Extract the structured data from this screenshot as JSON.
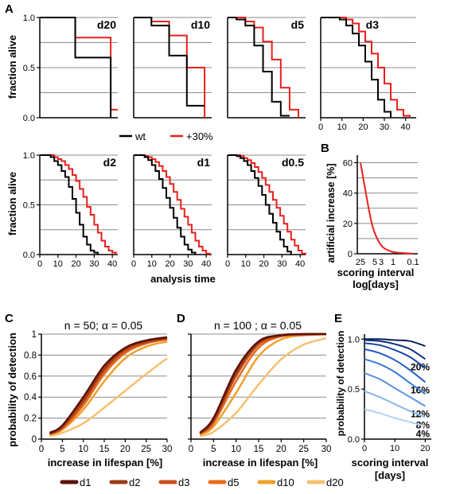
{
  "figure": {
    "colors": {
      "wt": "#000000",
      "plus30": "#e8201c",
      "axis": "#000000",
      "grid": "#8c8c8c",
      "artificial": "#e8201c",
      "d1": "#5a1208",
      "d2": "#9b3a14",
      "d3": "#c8501c",
      "d5": "#e86a1e",
      "d10": "#f0a02a",
      "d20": "#f7c070",
      "E_shades": [
        "#0b1f5c",
        "#0f2f80",
        "#1745a8",
        "#1f5cc8",
        "#3a78d8",
        "#5a94e2",
        "#88b4ec",
        "#b6d0f4"
      ]
    },
    "labels": {
      "panel_A": "A",
      "panel_B": "B",
      "panel_C": "C",
      "panel_D": "D",
      "panel_E": "E",
      "fraction_alive_top": "fraction alive",
      "fraction_alive_bottom": "fraction alive",
      "analysis_time": "analysis time",
      "artificial_increase": "artificial increase [%]",
      "scoring_interval_log_1": "scoring interval",
      "scoring_interval_log_2": "log[days]",
      "prob_detection_C": "probability of detection",
      "prob_detection_D": "probability of detection",
      "prob_detection_E": "probability of detection",
      "increase_lifespan_C": "increase in lifespan [%]",
      "increase_lifespan_D": "increase in lifespan [%]",
      "scoring_interval_E_1": "scoring interval",
      "scoring_interval_E_2": "[days]",
      "title_C": "n = 50; α = 0.05",
      "title_D": "n = 100 ; α = 0.05",
      "legend_wt": "wt",
      "legend_plus30": "+30%"
    },
    "legend_bottom": [
      "d1",
      "d2",
      "d3",
      "d5",
      "d10",
      "d20"
    ]
  },
  "chart_data": [
    {
      "panel": "A",
      "subpanel": "d20",
      "type": "line",
      "step": true,
      "ylabel": "fraction alive",
      "ylim": [
        0,
        1
      ],
      "yticks": [
        "0.0",
        "0.5",
        "1.0"
      ],
      "series": [
        {
          "name": "wt",
          "x": [
            0,
            20,
            20,
            40,
            40
          ],
          "y": [
            1.0,
            1.0,
            0.6,
            0.6,
            0.0
          ]
        },
        {
          "name": "+30%",
          "x": [
            0,
            20,
            20,
            40,
            40,
            44
          ],
          "y": [
            1.0,
            1.0,
            0.8,
            0.8,
            0.08,
            0.08
          ]
        }
      ]
    },
    {
      "panel": "A",
      "subpanel": "d10",
      "type": "line",
      "step": true,
      "ylim": [
        0,
        1
      ],
      "series": [
        {
          "name": "wt",
          "x": [
            0,
            10,
            10,
            20,
            20,
            30,
            30,
            40
          ],
          "y": [
            1.0,
            1.0,
            0.92,
            0.92,
            0.62,
            0.62,
            0.12,
            0.12
          ]
        },
        {
          "name": "+30%",
          "x": [
            0,
            10,
            10,
            20,
            20,
            30,
            30,
            40,
            40
          ],
          "y": [
            1.0,
            1.0,
            0.96,
            0.96,
            0.82,
            0.82,
            0.5,
            0.5,
            0.0
          ]
        }
      ]
    },
    {
      "panel": "A",
      "subpanel": "d5",
      "type": "line",
      "step": true,
      "ylim": [
        0,
        1
      ],
      "series": [
        {
          "name": "wt",
          "x": [
            0,
            5,
            5,
            10,
            10,
            15,
            15,
            20,
            20,
            25,
            25,
            30,
            30,
            35
          ],
          "y": [
            1.0,
            1.0,
            0.98,
            0.98,
            0.92,
            0.92,
            0.72,
            0.72,
            0.46,
            0.46,
            0.16,
            0.16,
            0.02,
            0.02
          ]
        },
        {
          "name": "+30%",
          "x": [
            0,
            5,
            5,
            10,
            10,
            15,
            15,
            20,
            20,
            25,
            25,
            30,
            30,
            35,
            35,
            40,
            40
          ],
          "y": [
            1.0,
            1.0,
            1.0,
            1.0,
            0.96,
            0.96,
            0.9,
            0.9,
            0.76,
            0.76,
            0.58,
            0.58,
            0.3,
            0.3,
            0.08,
            0.08,
            0.0
          ]
        }
      ]
    },
    {
      "panel": "A",
      "subpanel": "d3",
      "type": "line",
      "step": true,
      "ylim": [
        0,
        1
      ],
      "xlim": [
        0,
        45
      ],
      "xticks": [
        0,
        10,
        20,
        30,
        40
      ],
      "series": [
        {
          "name": "wt",
          "x": [
            0,
            9,
            12,
            15,
            18,
            21,
            24,
            27,
            30,
            33
          ],
          "y": [
            1.0,
            0.98,
            0.92,
            0.84,
            0.72,
            0.56,
            0.38,
            0.18,
            0.06,
            0.0
          ]
        },
        {
          "name": "+30%",
          "x": [
            0,
            12,
            15,
            18,
            21,
            24,
            27,
            30,
            33,
            36,
            39,
            42
          ],
          "y": [
            1.0,
            0.98,
            0.94,
            0.86,
            0.76,
            0.64,
            0.5,
            0.34,
            0.18,
            0.08,
            0.02,
            0.0
          ]
        }
      ]
    },
    {
      "panel": "A",
      "subpanel": "d2",
      "type": "line",
      "step": true,
      "ylabel": "fraction alive",
      "ylim": [
        0,
        1
      ],
      "xlim": [
        0,
        42
      ],
      "yticks": [
        "0.0",
        "0.5",
        "1.0"
      ],
      "xticks": [
        0,
        10,
        20,
        30,
        40
      ],
      "series": [
        {
          "name": "wt",
          "x": [
            0,
            6,
            8,
            10,
            12,
            14,
            16,
            18,
            20,
            22,
            24,
            26,
            28,
            30,
            32
          ],
          "y": [
            1.0,
            0.98,
            0.94,
            0.9,
            0.84,
            0.78,
            0.68,
            0.56,
            0.42,
            0.3,
            0.18,
            0.1,
            0.04,
            0.02,
            0.0
          ]
        },
        {
          "name": "+30%",
          "x": [
            0,
            6,
            8,
            10,
            12,
            14,
            16,
            18,
            20,
            22,
            24,
            26,
            28,
            30,
            32,
            34,
            36,
            38,
            40,
            42
          ],
          "y": [
            1.0,
            1.0,
            0.98,
            0.96,
            0.94,
            0.9,
            0.86,
            0.8,
            0.74,
            0.66,
            0.58,
            0.48,
            0.4,
            0.3,
            0.22,
            0.14,
            0.08,
            0.04,
            0.02,
            0.0
          ]
        }
      ]
    },
    {
      "panel": "A",
      "subpanel": "d1",
      "type": "line",
      "step": true,
      "ylim": [
        0,
        1
      ],
      "xlim": [
        0,
        42
      ],
      "xticks": [
        0,
        10,
        20,
        30,
        40
      ],
      "xlabel": "analysis time",
      "series": [
        {
          "name": "wt",
          "x": [
            0,
            6,
            8,
            10,
            12,
            14,
            16,
            18,
            20,
            22,
            24,
            26,
            28,
            30,
            32,
            34
          ],
          "y": [
            1.0,
            0.98,
            0.95,
            0.9,
            0.84,
            0.76,
            0.67,
            0.57,
            0.47,
            0.37,
            0.27,
            0.18,
            0.1,
            0.05,
            0.02,
            0.0
          ]
        },
        {
          "name": "+30%",
          "x": [
            0,
            6,
            8,
            10,
            12,
            14,
            16,
            18,
            20,
            22,
            24,
            26,
            28,
            30,
            32,
            34,
            36,
            38,
            40,
            42
          ],
          "y": [
            1.0,
            0.99,
            0.98,
            0.96,
            0.93,
            0.89,
            0.84,
            0.78,
            0.71,
            0.63,
            0.55,
            0.46,
            0.38,
            0.3,
            0.22,
            0.14,
            0.08,
            0.04,
            0.01,
            0.0
          ]
        }
      ]
    },
    {
      "panel": "A",
      "subpanel": "d0.5",
      "type": "line",
      "step": true,
      "ylim": [
        0,
        1
      ],
      "xlim": [
        0,
        42
      ],
      "xticks": [
        0,
        10,
        20,
        30,
        40
      ],
      "series": [
        {
          "name": "wt",
          "x": [
            0,
            5,
            7,
            9,
            11,
            13,
            15,
            17,
            19,
            21,
            23,
            25,
            27,
            29,
            31,
            33,
            35
          ],
          "y": [
            1.0,
            0.99,
            0.97,
            0.94,
            0.9,
            0.84,
            0.77,
            0.69,
            0.6,
            0.5,
            0.41,
            0.32,
            0.23,
            0.15,
            0.08,
            0.03,
            0.0
          ]
        },
        {
          "name": "+30%",
          "x": [
            0,
            5,
            7,
            9,
            11,
            13,
            15,
            17,
            19,
            21,
            23,
            25,
            27,
            29,
            31,
            33,
            35,
            37,
            39,
            41,
            43
          ],
          "y": [
            1.0,
            1.0,
            0.99,
            0.97,
            0.95,
            0.92,
            0.88,
            0.83,
            0.77,
            0.7,
            0.63,
            0.55,
            0.47,
            0.39,
            0.31,
            0.23,
            0.15,
            0.09,
            0.04,
            0.01,
            0.0
          ]
        }
      ]
    },
    {
      "panel": "B",
      "type": "line",
      "ylabel": "artificial increase [%]",
      "xlabel": "scoring interval log[days]",
      "ylim": [
        0,
        65
      ],
      "yticks": [
        0,
        20,
        40,
        60
      ],
      "xtick_labels": [
        "25",
        "5",
        "3",
        "1",
        "0.1"
      ],
      "series": [
        {
          "name": "",
          "x": [
            25,
            15,
            10,
            7,
            5,
            3,
            2,
            1,
            0.5,
            0.1
          ],
          "y": [
            60,
            42,
            28,
            18,
            12,
            6,
            3.5,
            1.5,
            0.7,
            0.1
          ]
        }
      ]
    },
    {
      "panel": "C",
      "type": "line",
      "title": "n = 50; α = 0.05",
      "xlabel": "increase in lifespan [%]",
      "ylabel": "probability of detection",
      "xlim": [
        0,
        30
      ],
      "ylim": [
        0,
        1
      ],
      "xticks": [
        0,
        5,
        10,
        15,
        20,
        25,
        30
      ],
      "yticks": [
        "0",
        "0.2",
        "0.4",
        "0.6",
        "0.8",
        "1"
      ],
      "x": [
        2,
        5,
        10,
        15,
        20,
        25,
        30
      ],
      "series": [
        {
          "name": "d1",
          "values": [
            0.06,
            0.13,
            0.4,
            0.7,
            0.87,
            0.94,
            0.97
          ]
        },
        {
          "name": "d2",
          "values": [
            0.05,
            0.12,
            0.37,
            0.67,
            0.86,
            0.93,
            0.96
          ]
        },
        {
          "name": "d3",
          "values": [
            0.05,
            0.11,
            0.35,
            0.65,
            0.84,
            0.92,
            0.96
          ]
        },
        {
          "name": "d5",
          "values": [
            0.05,
            0.1,
            0.32,
            0.62,
            0.82,
            0.91,
            0.95
          ]
        },
        {
          "name": "d10",
          "values": [
            0.04,
            0.09,
            0.28,
            0.55,
            0.77,
            0.88,
            0.93
          ]
        },
        {
          "name": "d20",
          "values": [
            0.03,
            0.06,
            0.15,
            0.3,
            0.46,
            0.62,
            0.77
          ]
        }
      ]
    },
    {
      "panel": "D",
      "type": "line",
      "title": "n = 100 ; α = 0.05",
      "xlabel": "increase in lifespan [%]",
      "xlim": [
        0,
        30
      ],
      "ylim": [
        0,
        1
      ],
      "xticks": [
        0,
        5,
        10,
        15,
        20,
        25,
        30
      ],
      "x": [
        2,
        5,
        10,
        15,
        20,
        25,
        30
      ],
      "series": [
        {
          "name": "d1",
          "values": [
            0.06,
            0.2,
            0.66,
            0.93,
            0.99,
            1.0,
            1.0
          ]
        },
        {
          "name": "d2",
          "values": [
            0.06,
            0.18,
            0.63,
            0.92,
            0.99,
            1.0,
            1.0
          ]
        },
        {
          "name": "d3",
          "values": [
            0.05,
            0.17,
            0.6,
            0.9,
            0.98,
            1.0,
            1.0
          ]
        },
        {
          "name": "d5",
          "values": [
            0.05,
            0.15,
            0.55,
            0.87,
            0.98,
            0.99,
            1.0
          ]
        },
        {
          "name": "d10",
          "values": [
            0.04,
            0.12,
            0.44,
            0.79,
            0.95,
            0.99,
            1.0
          ]
        },
        {
          "name": "d20",
          "values": [
            0.03,
            0.07,
            0.25,
            0.52,
            0.76,
            0.9,
            0.96
          ]
        }
      ]
    },
    {
      "panel": "E",
      "type": "line",
      "xlabel": "scoring interval [days]",
      "ylabel": "probability of detection",
      "xlim": [
        0,
        22
      ],
      "ylim": [
        0,
        1.05
      ],
      "xticks": [
        0,
        10,
        20
      ],
      "yticks": [
        "0.0",
        "0.5",
        "1.0"
      ],
      "x": [
        0,
        5,
        10,
        15,
        20
      ],
      "series": [
        {
          "name": "",
          "values": [
            1.0,
            1.0,
            0.99,
            0.98,
            0.93
          ]
        },
        {
          "name": "20%",
          "label": "20%",
          "values": [
            0.99,
            0.98,
            0.95,
            0.9,
            0.8
          ]
        },
        {
          "name": "",
          "values": [
            0.96,
            0.94,
            0.89,
            0.82,
            0.71
          ]
        },
        {
          "name": "16%",
          "label": "16%",
          "values": [
            0.9,
            0.86,
            0.79,
            0.69,
            0.57
          ]
        },
        {
          "name": "",
          "values": [
            0.8,
            0.75,
            0.67,
            0.56,
            0.45
          ]
        },
        {
          "name": "12%",
          "label": "12%",
          "values": [
            0.66,
            0.6,
            0.51,
            0.42,
            0.33
          ]
        },
        {
          "name": "8%",
          "label": "8%",
          "values": [
            0.48,
            0.42,
            0.35,
            0.28,
            0.22
          ]
        },
        {
          "name": "4%",
          "label": "4%",
          "values": [
            0.3,
            0.26,
            0.21,
            0.17,
            0.13
          ]
        }
      ]
    }
  ]
}
